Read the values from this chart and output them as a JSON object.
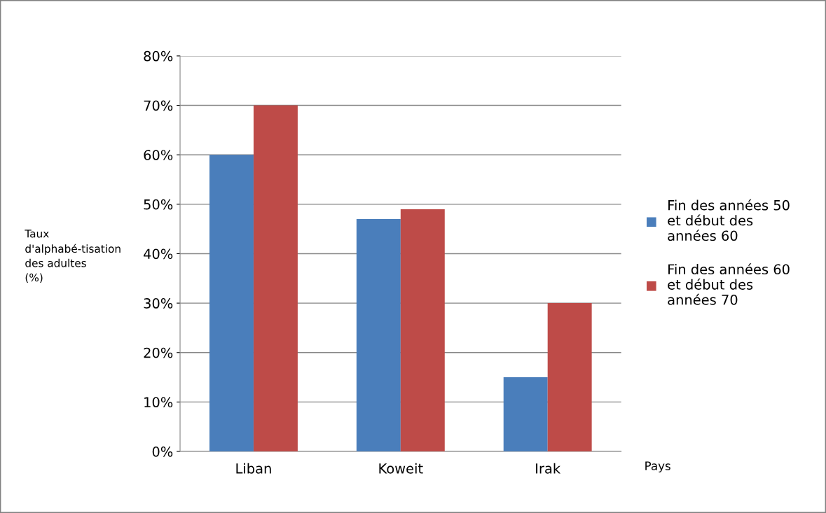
{
  "chart_data": {
    "type": "bar",
    "ylabel": "Taux d'alphabé-tisation des adultes (%)",
    "xlabel": "Pays",
    "categories": [
      "Liban",
      "Koweit",
      "Irak"
    ],
    "series": [
      {
        "name": "Fin des années 50 et début des années 60",
        "color": "#4a7ebb",
        "values": [
          60,
          47,
          15
        ]
      },
      {
        "name": "Fin des années 60 et début des années 70",
        "color": "#be4b48",
        "values": [
          70,
          49,
          30
        ]
      }
    ],
    "ylim": [
      0,
      80
    ],
    "yticks": [
      {
        "value": 0,
        "label": "0%"
      },
      {
        "value": 10,
        "label": "10%"
      },
      {
        "value": 20,
        "label": "20%"
      },
      {
        "value": 30,
        "label": "30%"
      },
      {
        "value": 40,
        "label": "40%"
      },
      {
        "value": 50,
        "label": "50%"
      },
      {
        "value": 60,
        "label": "60%"
      },
      {
        "value": 70,
        "label": "70%"
      },
      {
        "value": 80,
        "label": "80%"
      }
    ],
    "grid": "y",
    "legend": "right"
  }
}
